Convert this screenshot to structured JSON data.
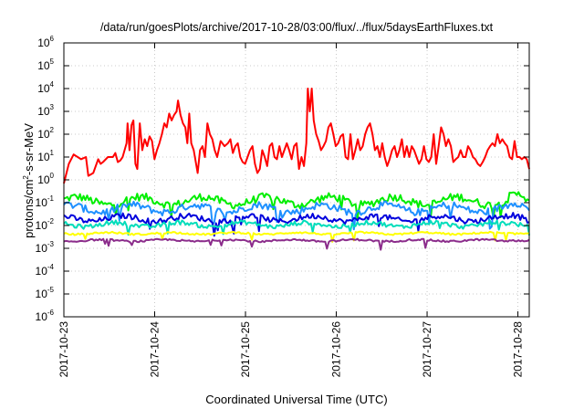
{
  "chart_data": {
    "type": "line",
    "title": "/data/run/goesPlots/archive/2017-10-28/03:00/flux/../flux/5daysEarthFluxes.txt",
    "xlabel": "Coordinated Universal Time (UTC)",
    "ylabel": "protons/cm2-s-sr-MeV",
    "ylabel_parts": [
      "protons/cm",
      "2",
      "-s-sr-MeV"
    ],
    "y_scale": "log",
    "ylim": [
      1e-06,
      1000000.0
    ],
    "y_ticks": [
      {
        "value": 1e-06,
        "base": "10",
        "exp": "-6"
      },
      {
        "value": 1e-05,
        "base": "10",
        "exp": "-5"
      },
      {
        "value": 0.0001,
        "base": "10",
        "exp": "-4"
      },
      {
        "value": 0.001,
        "base": "10",
        "exp": "-3"
      },
      {
        "value": 0.01,
        "base": "10",
        "exp": "-2"
      },
      {
        "value": 0.1,
        "base": "10",
        "exp": "-1"
      },
      {
        "value": 1,
        "base": "10",
        "exp": "0"
      },
      {
        "value": 10,
        "base": "10",
        "exp": "1"
      },
      {
        "value": 100,
        "base": "10",
        "exp": "2"
      },
      {
        "value": 1000,
        "base": "10",
        "exp": "3"
      },
      {
        "value": 10000,
        "base": "10",
        "exp": "4"
      },
      {
        "value": 100000,
        "base": "10",
        "exp": "5"
      },
      {
        "value": 1000000,
        "base": "10",
        "exp": "6"
      }
    ],
    "xlim": [
      "2017-10-23",
      "2017-10-28T03:00"
    ],
    "x_ticks": [
      "2017-10-23",
      "2017-10-24",
      "2017-10-25",
      "2017-10-26",
      "2017-10-27",
      "2017-10-28"
    ],
    "grid": true,
    "series": [
      {
        "color": "#ff0000",
        "values": [
          [
            0.0,
            0.7
          ],
          [
            0.1,
            5.0
          ],
          [
            0.2,
            13.0
          ],
          [
            0.35,
            8.0
          ],
          [
            0.45,
            10.0
          ],
          [
            0.5,
            1.5
          ],
          [
            0.6,
            2.0
          ],
          [
            0.7,
            8.0
          ],
          [
            0.75,
            5.0
          ],
          [
            0.8,
            6.0
          ],
          [
            0.9,
            10.0
          ],
          [
            1.0,
            10.0
          ],
          [
            1.05,
            15.0
          ],
          [
            1.1,
            6.0
          ],
          [
            1.15,
            7.0
          ],
          [
            1.2,
            10.0
          ],
          [
            1.28,
            40.0
          ],
          [
            1.3,
            300.0
          ],
          [
            1.34,
            20.0
          ],
          [
            1.38,
            250.0
          ],
          [
            1.42,
            400.0
          ],
          [
            1.46,
            5.0
          ],
          [
            1.5,
            3.0
          ],
          [
            1.55,
            300.0
          ],
          [
            1.6,
            20.0
          ],
          [
            1.65,
            60.0
          ],
          [
            1.7,
            30.0
          ],
          [
            1.75,
            80.0
          ],
          [
            1.8,
            50.0
          ],
          [
            1.85,
            8.0
          ],
          [
            1.9,
            20.0
          ],
          [
            1.95,
            40.0
          ],
          [
            2.0,
            100.0
          ],
          [
            2.05,
            300.0
          ],
          [
            2.1,
            200.0
          ],
          [
            2.15,
            800.0
          ],
          [
            2.2,
            400.0
          ],
          [
            2.25,
            700.0
          ],
          [
            2.3,
            1000.0
          ],
          [
            2.33,
            3000.0
          ],
          [
            2.38,
            700.0
          ],
          [
            2.43,
            300.0
          ],
          [
            2.48,
            200.0
          ],
          [
            2.52,
            40.0
          ],
          [
            2.56,
            800.0
          ],
          [
            2.6,
            40.0
          ],
          [
            2.65,
            20.0
          ],
          [
            2.7,
            5.0
          ],
          [
            2.73,
            2.0
          ],
          [
            2.78,
            20.0
          ],
          [
            2.83,
            30.0
          ],
          [
            2.88,
            10.0
          ],
          [
            2.93,
            300.0
          ],
          [
            2.98,
            100.0
          ],
          [
            3.03,
            60.0
          ],
          [
            3.08,
            20.0
          ],
          [
            3.13,
            10.0
          ],
          [
            3.2,
            50.0
          ],
          [
            3.28,
            30.0
          ],
          [
            3.35,
            40.0
          ],
          [
            3.4,
            60.0
          ],
          [
            3.45,
            15.0
          ],
          [
            3.5,
            30.0
          ],
          [
            3.55,
            40.0
          ],
          [
            3.6,
            10.0
          ],
          [
            3.65,
            6.0
          ],
          [
            3.7,
            5.0
          ],
          [
            3.75,
            10.0
          ],
          [
            3.8,
            20.0
          ],
          [
            3.85,
            30.0
          ],
          [
            3.9,
            5.0
          ],
          [
            3.95,
            2.0
          ],
          [
            4.0,
            3.0
          ],
          [
            4.05,
            20.0
          ],
          [
            4.1,
            10.0
          ],
          [
            4.15,
            4.0
          ],
          [
            4.2,
            30.0
          ],
          [
            4.25,
            40.0
          ],
          [
            4.3,
            10.0
          ],
          [
            4.35,
            8.0
          ],
          [
            4.4,
            30.0
          ],
          [
            4.45,
            10.0
          ],
          [
            4.5,
            20.0
          ],
          [
            4.55,
            40.0
          ],
          [
            4.6,
            20.0
          ],
          [
            4.65,
            8.0
          ],
          [
            4.7,
            30.0
          ],
          [
            4.75,
            40.0
          ],
          [
            4.8,
            3.0
          ],
          [
            4.85,
            10.0
          ],
          [
            4.9,
            4.0
          ],
          [
            4.95,
            40.0
          ],
          [
            4.98,
            10000.0
          ],
          [
            5.02,
            1000.0
          ],
          [
            5.06,
            10000.0
          ],
          [
            5.1,
            400.0
          ],
          [
            5.15,
            100.0
          ],
          [
            5.2,
            50.0
          ],
          [
            5.25,
            20.0
          ],
          [
            5.3,
            30.0
          ],
          [
            5.35,
            50.0
          ],
          [
            5.4,
            200.0
          ],
          [
            5.45,
            300.0
          ],
          [
            5.5,
            100.0
          ],
          [
            5.55,
            30.0
          ],
          [
            5.6,
            40.0
          ],
          [
            5.65,
            80.0
          ],
          [
            5.7,
            100.0
          ],
          [
            5.75,
            10.0
          ],
          [
            5.8,
            8.0
          ],
          [
            5.85,
            100.0
          ],
          [
            5.9,
            8.0
          ],
          [
            5.95,
            20.0
          ],
          [
            6.0,
            60.0
          ],
          [
            6.05,
            20.0
          ],
          [
            6.1,
            30.0
          ],
          [
            6.15,
            100.0
          ],
          [
            6.2,
            200.0
          ],
          [
            6.25,
            300.0
          ],
          [
            6.3,
            100.0
          ],
          [
            6.35,
            20.0
          ],
          [
            6.4,
            30.0
          ],
          [
            6.45,
            10.0
          ],
          [
            6.5,
            40.0
          ],
          [
            6.55,
            10.0
          ],
          [
            6.6,
            4.0
          ],
          [
            6.65,
            8.0
          ],
          [
            6.7,
            20.0
          ],
          [
            6.75,
            30.0
          ],
          [
            6.8,
            10.0
          ],
          [
            6.85,
            20.0
          ],
          [
            6.9,
            60.0
          ],
          [
            6.95,
            10.0
          ],
          [
            7.0,
            30.0
          ],
          [
            7.05,
            10.0
          ],
          [
            7.1,
            30.0
          ],
          [
            7.15,
            20.0
          ],
          [
            7.2,
            10.0
          ],
          [
            7.25,
            5.0
          ],
          [
            7.3,
            8.0
          ],
          [
            7.35,
            30.0
          ],
          [
            7.4,
            8.0
          ],
          [
            7.45,
            6.0
          ],
          [
            7.5,
            10.0
          ],
          [
            7.55,
            100.0
          ],
          [
            7.6,
            5.0
          ],
          [
            7.65,
            30.0
          ],
          [
            7.7,
            200.0
          ],
          [
            7.75,
            100.0
          ],
          [
            7.8,
            30.0
          ],
          [
            7.85,
            60.0
          ],
          [
            7.9,
            30.0
          ],
          [
            7.95,
            6.0
          ],
          [
            8.0,
            8.0
          ],
          [
            8.05,
            10.0
          ],
          [
            8.1,
            20.0
          ],
          [
            8.15,
            10.0
          ],
          [
            8.2,
            10.0
          ],
          [
            8.25,
            30.0
          ],
          [
            8.3,
            20.0
          ],
          [
            8.35,
            10.0
          ],
          [
            8.4,
            8.0
          ],
          [
            8.45,
            5.0
          ],
          [
            8.5,
            4.0
          ],
          [
            8.55,
            6.0
          ],
          [
            8.6,
            10.0
          ],
          [
            8.65,
            20.0
          ],
          [
            8.7,
            30.0
          ],
          [
            8.75,
            40.0
          ],
          [
            8.8,
            30.0
          ],
          [
            8.85,
            100.0
          ],
          [
            8.9,
            40.0
          ],
          [
            8.95,
            60.0
          ],
          [
            9.0,
            40.0
          ],
          [
            9.05,
            30.0
          ],
          [
            9.1,
            10.0
          ],
          [
            9.15,
            8.0
          ],
          [
            9.2,
            50.0
          ],
          [
            9.25,
            10.0
          ],
          [
            9.3,
            10.0
          ],
          [
            9.35,
            8.0
          ],
          [
            9.4,
            10.0
          ],
          [
            9.45,
            8.0
          ],
          [
            9.5,
            3.0
          ]
        ],
        "jitter": 0.0
      },
      {
        "color": "#00ee00",
        "baseline": 0.12,
        "amp": 0.22,
        "phase": 0.3,
        "dips": 0.6,
        "values": []
      },
      {
        "color": "#1e90ff",
        "baseline": 0.055,
        "amp": 0.2,
        "phase": 1.1,
        "dips": 0.6,
        "values": []
      },
      {
        "color": "#0000dd",
        "baseline": 0.02,
        "amp": 0.15,
        "phase": 2.0,
        "dips": 0.5,
        "values": []
      },
      {
        "color": "#00ddbb",
        "baseline": 0.011,
        "amp": 0.12,
        "phase": 2.7,
        "dips": 0.4,
        "values": []
      },
      {
        "color": "#ffff00",
        "baseline": 0.0045,
        "amp": 0.05,
        "phase": 3.5,
        "dips": 0.3,
        "values": []
      },
      {
        "color": "#8b2c8b",
        "baseline": 0.0022,
        "amp": 0.05,
        "phase": 4.1,
        "dips": 0.3,
        "values": []
      }
    ]
  }
}
